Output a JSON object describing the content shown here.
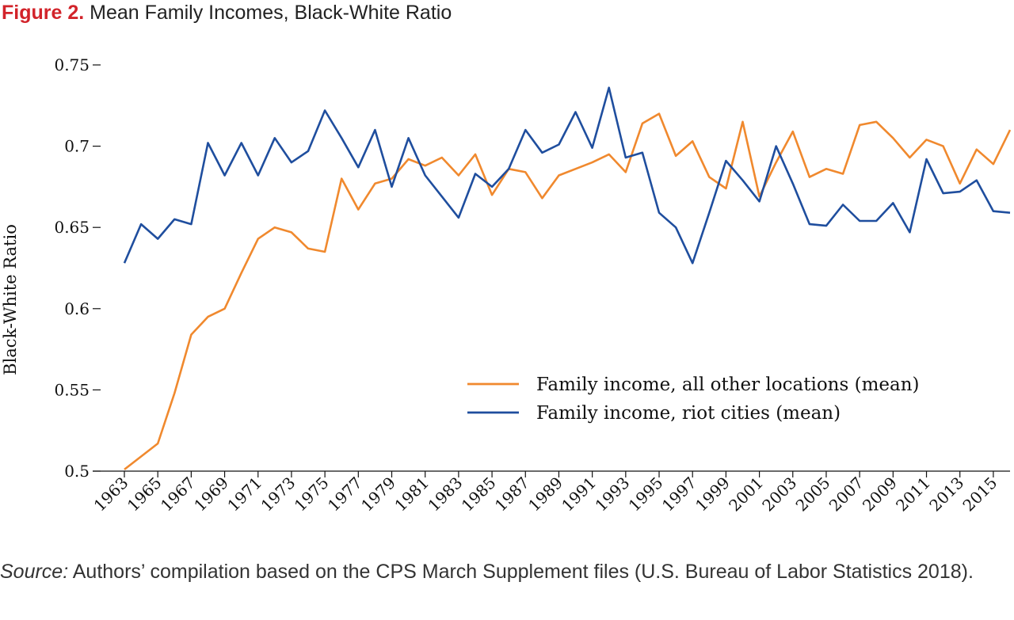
{
  "figure": {
    "label": "Figure 2.",
    "title": "Mean Family Incomes, Black-White Ratio"
  },
  "source": {
    "label": "Source:",
    "text": "Authors’ compilation based on the CPS March Supplement files (U.S. Bureau of Labor Statistics 2018)."
  },
  "chart_data": {
    "type": "line",
    "title": "Mean Family Incomes, Black-White Ratio",
    "xlabel": "",
    "ylabel": "Black-White Ratio",
    "ylim": [
      0.5,
      0.75
    ],
    "xlim": [
      1963,
      2016
    ],
    "yticks": [
      "0.5",
      "0.55",
      "0.6",
      "0.65",
      "0.7",
      "0.75"
    ],
    "xtick_labels": [
      "1963",
      "1965",
      "1967",
      "1969",
      "1971",
      "1973",
      "1975",
      "1977",
      "1979",
      "1981",
      "1983",
      "1985",
      "1987",
      "1989",
      "1991",
      "1993",
      "1995",
      "1997",
      "1999",
      "2001",
      "2003",
      "2005",
      "2007",
      "2009",
      "2011",
      "2013",
      "2015"
    ],
    "grid": false,
    "legend_position": "center-right",
    "x": [
      1963,
      1964,
      1965,
      1966,
      1967,
      1968,
      1969,
      1970,
      1971,
      1972,
      1973,
      1974,
      1975,
      1976,
      1977,
      1978,
      1979,
      1980,
      1981,
      1982,
      1983,
      1984,
      1985,
      1986,
      1987,
      1988,
      1989,
      1990,
      1991,
      1992,
      1993,
      1994,
      1995,
      1996,
      1997,
      1998,
      1999,
      2000,
      2001,
      2002,
      2003,
      2004,
      2005,
      2006,
      2007,
      2008,
      2009,
      2010,
      2011,
      2012,
      2013,
      2014,
      2015,
      2016
    ],
    "series": [
      {
        "name": "Family income, all other locations (mean)",
        "color": "#f0892e",
        "values": [
          0.501,
          0.509,
          0.517,
          0.548,
          0.584,
          0.595,
          0.6,
          0.622,
          0.643,
          0.65,
          0.647,
          0.637,
          0.635,
          0.68,
          0.661,
          0.677,
          0.68,
          0.692,
          0.688,
          0.693,
          0.682,
          0.695,
          0.67,
          0.686,
          0.684,
          0.668,
          0.682,
          0.686,
          0.69,
          0.695,
          0.684,
          0.714,
          0.72,
          0.694,
          0.703,
          0.681,
          0.674,
          0.715,
          0.669,
          0.69,
          0.709,
          0.681,
          0.686,
          0.683,
          0.713,
          0.715,
          0.705,
          0.693,
          0.704,
          0.7,
          0.677,
          0.698,
          0.689,
          0.71
        ]
      },
      {
        "name": "Family income, riot cities (mean)",
        "color": "#1f4e9e",
        "values": [
          0.628,
          0.652,
          0.643,
          0.655,
          0.652,
          0.702,
          0.682,
          0.702,
          0.682,
          0.705,
          0.69,
          0.697,
          0.722,
          0.705,
          0.687,
          0.71,
          0.675,
          0.705,
          0.682,
          0.669,
          0.656,
          0.683,
          0.675,
          0.686,
          0.71,
          0.696,
          0.701,
          0.721,
          0.699,
          0.736,
          0.693,
          0.696,
          0.659,
          0.65,
          0.628,
          0.659,
          0.691,
          0.679,
          0.666,
          0.7,
          0.677,
          0.652,
          0.651,
          0.664,
          0.654,
          0.654,
          0.665,
          0.647,
          0.692,
          0.671,
          0.672,
          0.679,
          0.66,
          0.659
        ]
      }
    ]
  }
}
